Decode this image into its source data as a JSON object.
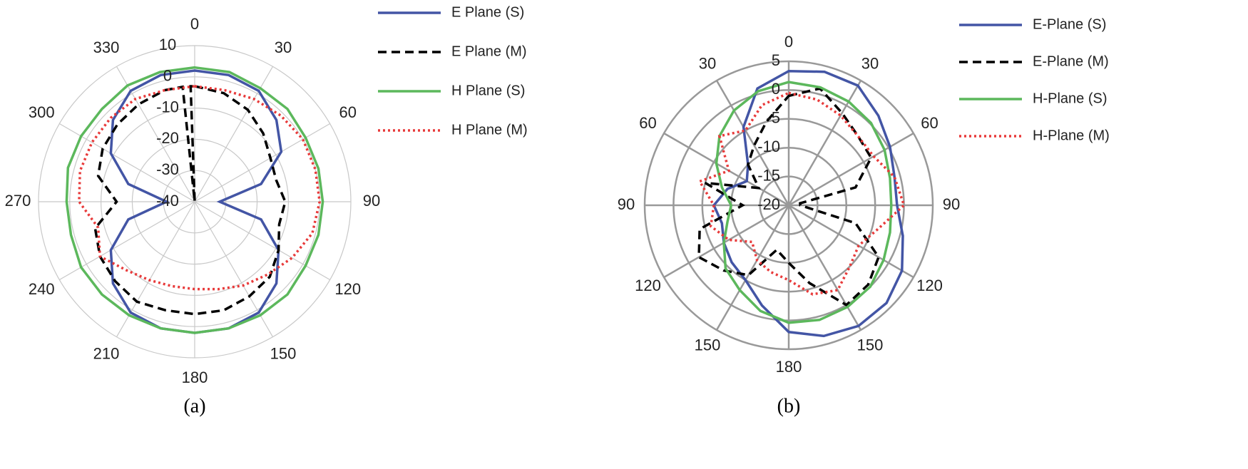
{
  "chart_data": [
    {
      "type": "polar",
      "caption": "(a)",
      "rlim": [
        -40,
        10
      ],
      "rticks": [
        10,
        0,
        -10,
        -20,
        -30,
        -40
      ],
      "thetaticks": [
        0,
        30,
        60,
        90,
        120,
        150,
        180,
        210,
        240,
        270,
        300,
        330
      ],
      "grid": true,
      "grid_color": "#c8c8c8",
      "legend": "right",
      "series": [
        {
          "name": "E Plane (S)",
          "color": "#4355a5",
          "line_style": "solid",
          "theta": [
            0,
            15,
            30,
            45,
            60,
            75,
            90,
            105,
            120,
            135,
            150,
            165,
            180,
            195,
            210,
            225,
            240,
            255,
            270,
            285,
            300,
            315,
            330,
            345
          ],
          "values": [
            2,
            2,
            1,
            -3,
            -8,
            -18,
            -32,
            -18,
            -9,
            -3,
            1,
            2,
            2,
            2,
            1,
            -3,
            -9,
            -18,
            -31,
            -18,
            -9,
            -3,
            1,
            2
          ]
        },
        {
          "name": "E Plane (M)",
          "color": "#000000",
          "line_style": "dashed",
          "theta": [
            0,
            15,
            30,
            45,
            60,
            75,
            90,
            105,
            120,
            135,
            150,
            165,
            180,
            195,
            210,
            225,
            240,
            255,
            270,
            285,
            300,
            315,
            330,
            345,
            354,
            356,
            358
          ],
          "values": [
            -3,
            -4,
            -6,
            -9,
            -12,
            -13,
            -11,
            -12,
            -9,
            -6,
            -5,
            -4,
            -4,
            -4,
            -3,
            -4,
            -5,
            -7,
            -15,
            -8,
            -6,
            -5,
            -4,
            -3,
            -3,
            -40,
            -3
          ]
        },
        {
          "name": "H Plane (S)",
          "color": "#5cb85c",
          "line_style": "solid",
          "theta": [
            0,
            15,
            30,
            45,
            60,
            75,
            90,
            105,
            120,
            135,
            150,
            165,
            180,
            195,
            210,
            225,
            240,
            255,
            270,
            285,
            300,
            315,
            330,
            345
          ],
          "values": [
            3,
            3,
            2,
            2,
            1,
            1,
            1,
            1,
            1,
            2,
            2,
            2,
            2,
            2,
            2,
            2,
            2,
            1,
            1,
            2,
            2,
            2,
            3,
            3
          ]
        },
        {
          "name": "H Plane (M)",
          "color": "#e83a3a",
          "line_style": "dotted",
          "theta": [
            0,
            15,
            30,
            45,
            60,
            75,
            90,
            105,
            120,
            135,
            150,
            165,
            180,
            195,
            210,
            225,
            240,
            255,
            270,
            285,
            300,
            315,
            330,
            345
          ],
          "values": [
            -3,
            -3,
            -2,
            -1,
            0,
            0,
            0,
            -1,
            -4,
            -7,
            -9,
            -11,
            -12,
            -12,
            -11,
            -9,
            -5,
            -8,
            -3,
            -2,
            -2,
            -2,
            -2,
            -3
          ]
        }
      ]
    },
    {
      "type": "polar",
      "caption": "(b)",
      "rlim": [
        -20,
        5
      ],
      "rticks": [
        5,
        0,
        -5,
        -10,
        -15,
        -20
      ],
      "thetaticks": [
        0,
        30,
        60,
        90,
        120,
        150,
        180,
        {
          "value": 210,
          "label": "150"
        },
        {
          "value": 240,
          "label": "120"
        },
        {
          "value": 270,
          "label": "90"
        },
        {
          "value": 300,
          "label": "60"
        },
        {
          "value": 330,
          "label": "30"
        }
      ],
      "grid": true,
      "grid_color": "#999999",
      "legend": "right",
      "series": [
        {
          "name": "E-Plane (S)",
          "color": "#4355a5",
          "line_style": "solid",
          "theta": [
            0,
            15,
            30,
            45,
            60,
            75,
            90,
            105,
            120,
            135,
            150,
            165,
            180,
            195,
            210,
            225,
            240,
            255,
            270,
            285,
            300,
            315,
            330,
            345
          ],
          "values": [
            3.3,
            4,
            4,
            2,
            0.3,
            -1,
            -1.2,
            0.5,
            2.7,
            4,
            4.2,
            3.5,
            2,
            -2,
            -5,
            -6,
            -7,
            -8,
            -7,
            -9,
            -11.6,
            -10,
            -4.3,
            1
          ]
        },
        {
          "name": "E-Plane (M)",
          "color": "#000000",
          "line_style": "dashed",
          "theta": [
            0,
            15,
            30,
            45,
            60,
            75,
            80,
            90,
            105,
            120,
            135,
            150,
            165,
            180,
            195,
            210,
            225,
            240,
            255,
            270,
            285,
            300,
            315,
            330,
            345
          ],
          "values": [
            -1,
            1,
            -1.5,
            -3,
            -3.5,
            -8,
            -18,
            -18,
            -8,
            -2,
            -0.5,
            0,
            -6,
            -10,
            -12,
            -6,
            -4,
            -2,
            -4,
            -12,
            -5,
            -14,
            -10,
            -8,
            -5
          ]
        },
        {
          "name": "H-Plane (S)",
          "color": "#5cb85c",
          "line_style": "solid",
          "theta": [
            0,
            15,
            30,
            45,
            60,
            75,
            90,
            105,
            120,
            135,
            150,
            165,
            180,
            195,
            210,
            225,
            240,
            255,
            270,
            285,
            300,
            315,
            330,
            345
          ],
          "values": [
            1.4,
            1.2,
            0.8,
            0.2,
            -0.8,
            -1.8,
            -2.2,
            -1.8,
            -1,
            0,
            0.4,
            0.6,
            0.4,
            -1,
            -3,
            -4.5,
            -7,
            -9,
            -10,
            -8,
            -5.5,
            -3,
            -1,
            0.5
          ]
        },
        {
          "name": "H-Plane (M)",
          "color": "#e83a3a",
          "line_style": "dotted",
          "theta": [
            0,
            15,
            30,
            45,
            60,
            75,
            90,
            105,
            120,
            135,
            150,
            165,
            180,
            195,
            210,
            225,
            240,
            255,
            270,
            285,
            300,
            315,
            330,
            345
          ],
          "values": [
            -0.5,
            -1,
            -2,
            -3,
            -3,
            -1,
            0,
            -4,
            -6,
            -5,
            -3,
            -4,
            -7,
            -8,
            -9,
            -11,
            -8,
            -6,
            -7,
            -4,
            -8,
            -3,
            -5,
            -2
          ]
        }
      ]
    }
  ]
}
